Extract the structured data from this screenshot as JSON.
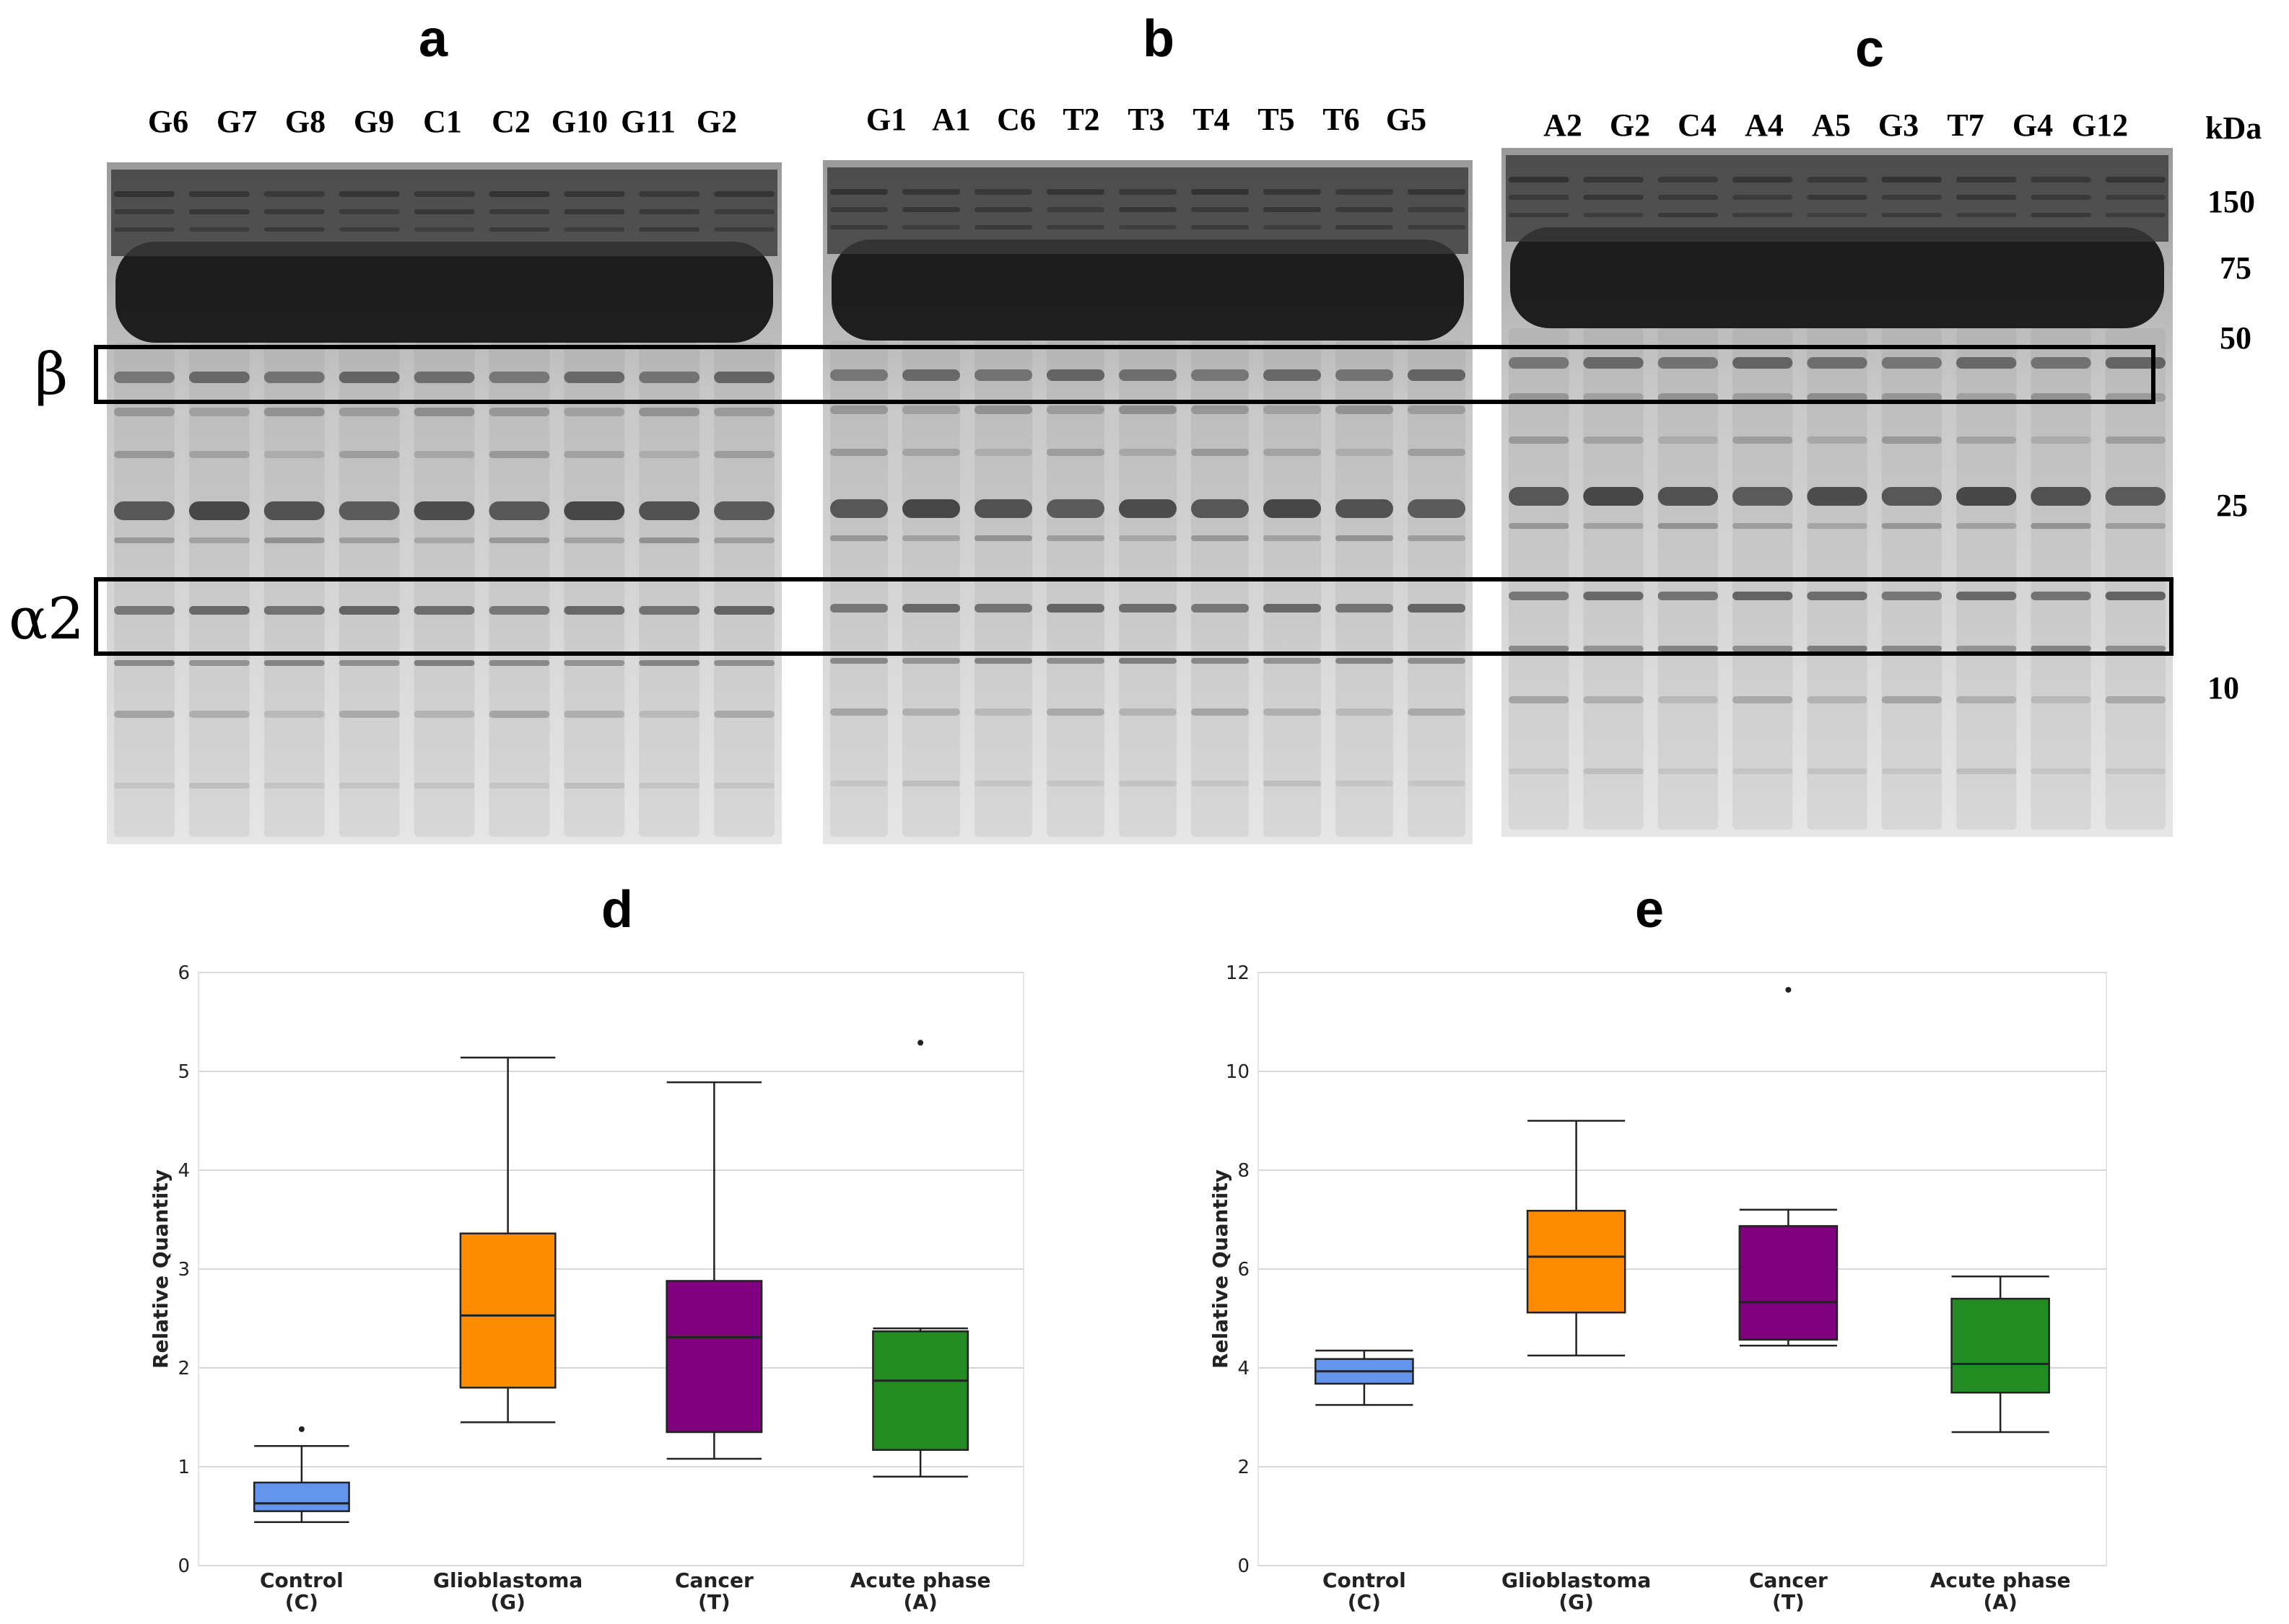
{
  "panels": {
    "a": "a",
    "b": "b",
    "c": "c",
    "d": "d",
    "e": "e"
  },
  "gels": [
    {
      "id": "a",
      "lanes": [
        "G6",
        "G7",
        "G8",
        "G9",
        "C1",
        "C2",
        "G10",
        "G11",
        "G2"
      ]
    },
    {
      "id": "b",
      "lanes": [
        "G1",
        "A1",
        "C6",
        "T2",
        "T3",
        "T4",
        "T5",
        "T6",
        "G5"
      ]
    },
    {
      "id": "c",
      "lanes": [
        "A2",
        "G2",
        "C4",
        "A4",
        "A5",
        "G3",
        "T7",
        "G4",
        "G12"
      ]
    }
  ],
  "markers": {
    "unit": "kDa",
    "labels": [
      "150",
      "75",
      "50",
      "25",
      "10"
    ]
  },
  "band_boxes": {
    "beta": "β",
    "alpha2": "α2"
  },
  "colors": {
    "control": "#6495ed",
    "glioblastoma": "#ff8c00",
    "cancer": "#800080",
    "acute": "#228b22",
    "grid": "#d9d9d9"
  },
  "chart_data": [
    {
      "panel": "d",
      "type": "box",
      "ylabel": "Relative Quantity",
      "ylim": [
        0,
        6
      ],
      "yticks": [
        "0",
        "1",
        "2",
        "3",
        "4",
        "5",
        "6"
      ],
      "grid": true,
      "categories": [
        {
          "name": "Control",
          "code": "(C)",
          "color": "#6495ed",
          "whisker_low": 0.44,
          "q1": 0.55,
          "median": 0.63,
          "q3": 0.84,
          "whisker_high": 1.21,
          "outliers": [
            1.38
          ]
        },
        {
          "name": "Glioblastoma",
          "code": "(G)",
          "color": "#ff8c00",
          "whisker_low": 1.45,
          "q1": 1.8,
          "median": 2.53,
          "q3": 3.36,
          "whisker_high": 5.14,
          "outliers": []
        },
        {
          "name": "Cancer",
          "code": "(T)",
          "color": "#800080",
          "whisker_low": 1.08,
          "q1": 1.35,
          "median": 2.31,
          "q3": 2.88,
          "whisker_high": 4.89,
          "outliers": []
        },
        {
          "name": "Acute phase",
          "code": "(A)",
          "color": "#228b22",
          "whisker_low": 0.9,
          "q1": 1.17,
          "median": 1.87,
          "q3": 2.37,
          "whisker_high": 2.4,
          "outliers": [
            5.29
          ]
        }
      ]
    },
    {
      "panel": "e",
      "type": "box",
      "ylabel": "Relative Quantity",
      "ylim": [
        0,
        12
      ],
      "yticks": [
        "0",
        "2",
        "4",
        "6",
        "8",
        "10",
        "12"
      ],
      "grid": true,
      "categories": [
        {
          "name": "Control",
          "code": "(C)",
          "color": "#6495ed",
          "whisker_low": 3.25,
          "q1": 3.68,
          "median": 3.93,
          "q3": 4.18,
          "whisker_high": 4.35,
          "outliers": []
        },
        {
          "name": "Glioblastoma",
          "code": "(G)",
          "color": "#ff8c00",
          "whisker_low": 4.25,
          "q1": 5.12,
          "median": 6.25,
          "q3": 7.18,
          "whisker_high": 9.0,
          "outliers": []
        },
        {
          "name": "Cancer",
          "code": "(T)",
          "color": "#800080",
          "whisker_low": 4.45,
          "q1": 4.57,
          "median": 5.33,
          "q3": 6.87,
          "whisker_high": 7.2,
          "outliers": [
            11.65
          ]
        },
        {
          "name": "Acute phase",
          "code": "(A)",
          "color": "#228b22",
          "whisker_low": 2.7,
          "q1": 3.5,
          "median": 4.08,
          "q3": 5.4,
          "whisker_high": 5.85,
          "outliers": []
        }
      ]
    }
  ]
}
